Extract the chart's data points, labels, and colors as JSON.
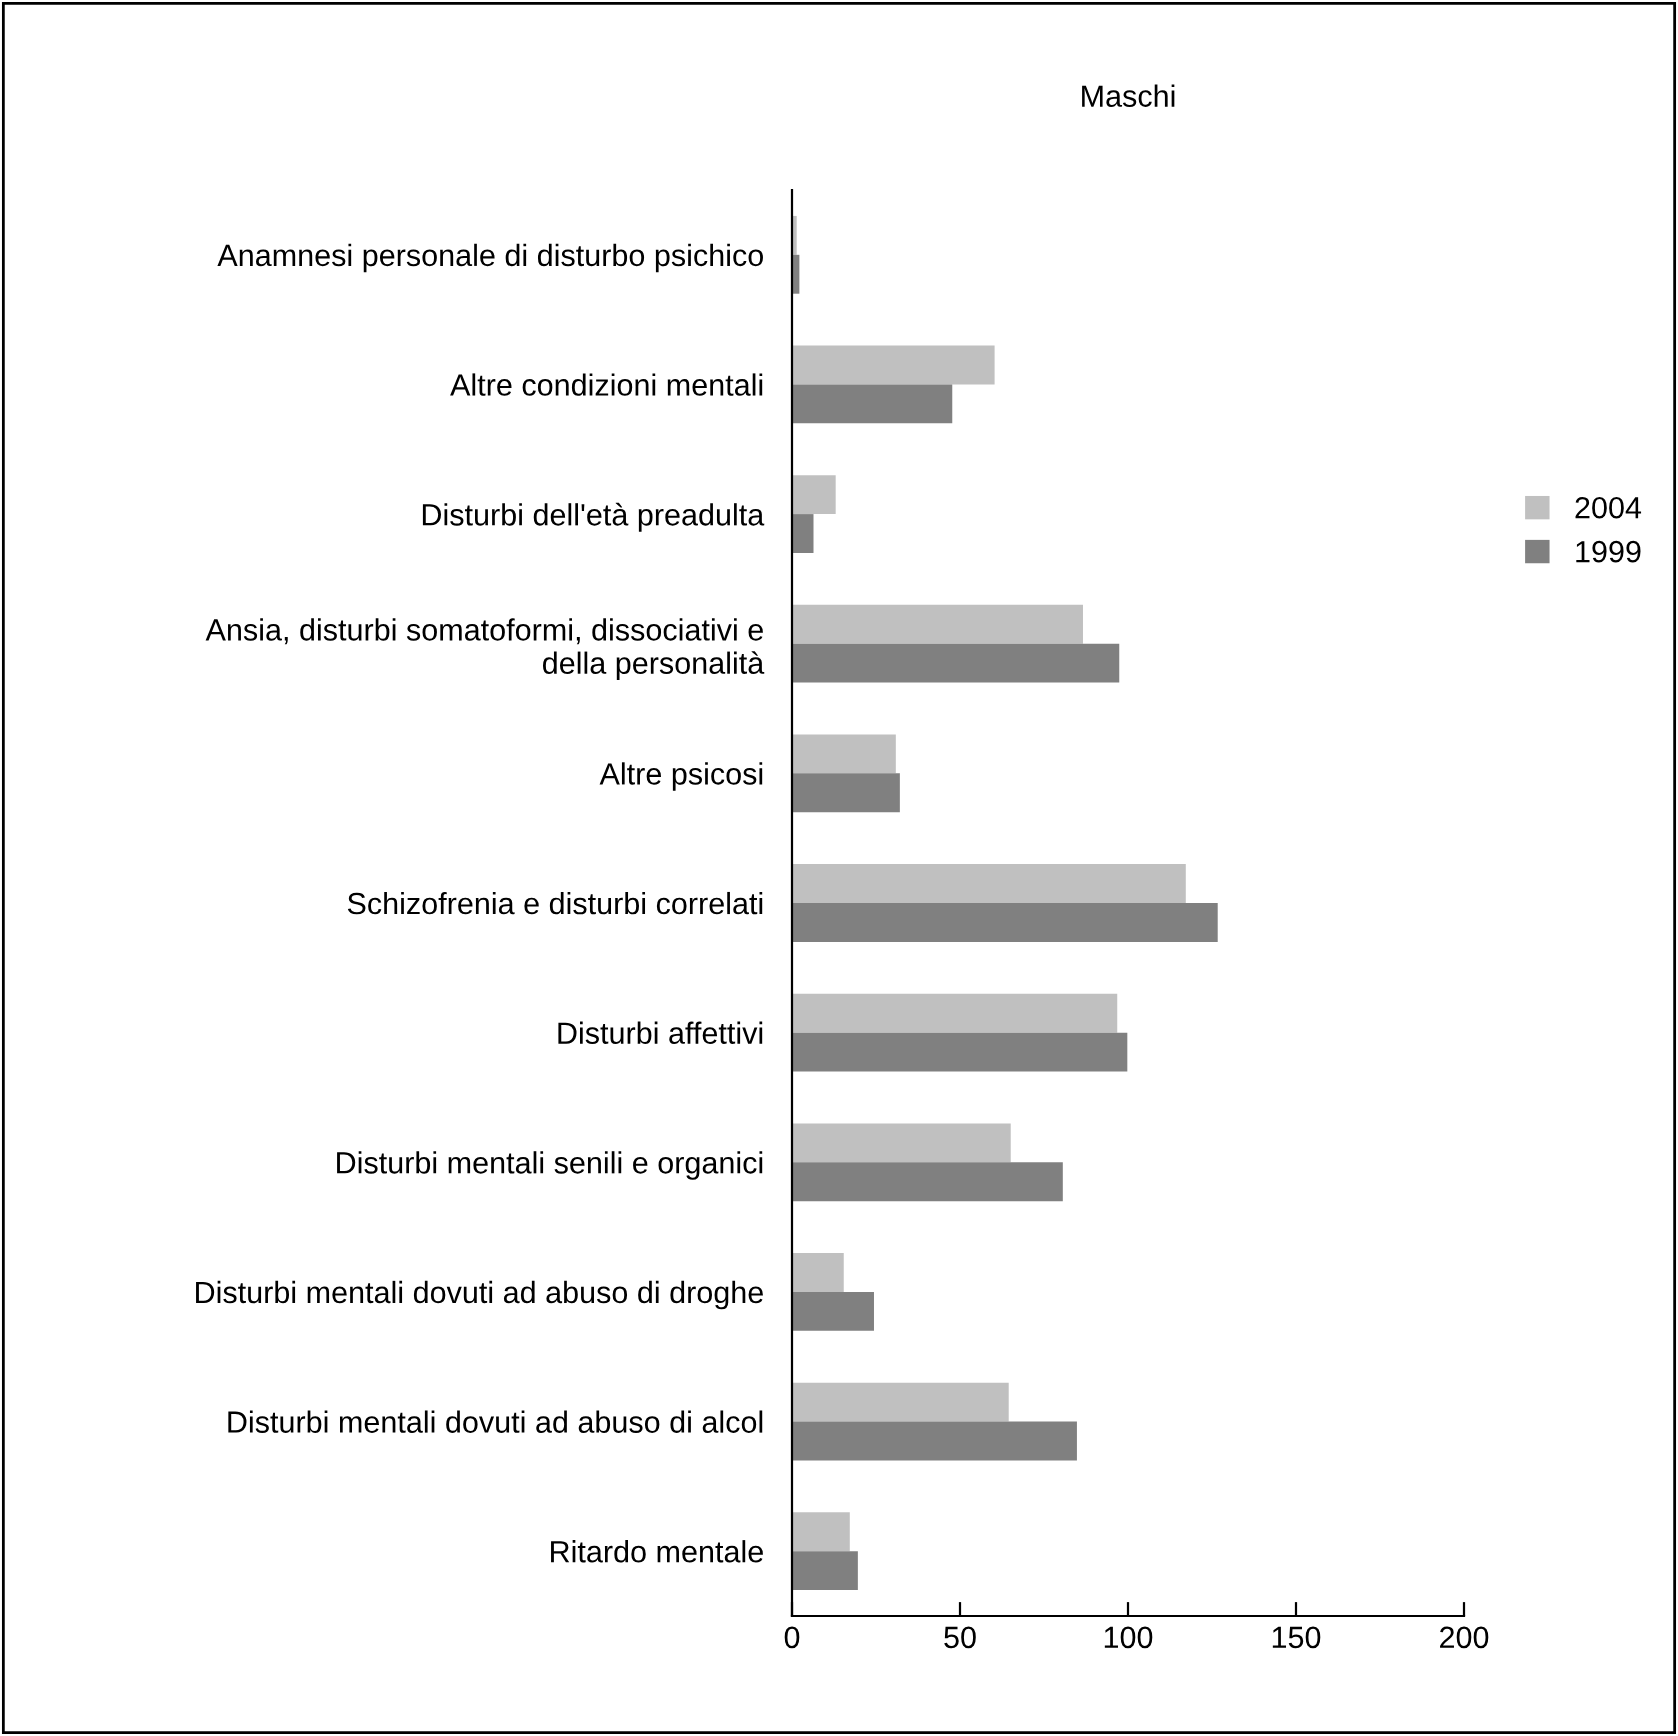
{
  "chart_data": {
    "type": "bar",
    "orientation": "horizontal",
    "title": "Maschi",
    "categories": [
      "Anamnesi personale di disturbo psichico",
      "Altre condizioni mentali",
      "Disturbi dell'età preadulta",
      "Ansia, disturbi somatoformi, dissociativi e\ndella personalità",
      "Altre psicosi",
      "Schizofrenia e disturbi correlati",
      "Disturbi affettivi",
      "Disturbi mentali senili e organici",
      "Disturbi mentali dovuti ad abuso di droghe",
      "Disturbi mentali dovuti ad abuso di alcol",
      "Ritardo mentale"
    ],
    "series": [
      {
        "name": "2004",
        "color": "#c0c0c0",
        "values": [
          1.4,
          60.3,
          13.0,
          86.6,
          30.9,
          117.2,
          96.8,
          65.1,
          15.4,
          64.5,
          17.2
        ]
      },
      {
        "name": "1999",
        "color": "#808080",
        "values": [
          2.2,
          47.7,
          6.4,
          97.4,
          32.1,
          126.7,
          99.8,
          80.6,
          24.4,
          84.8,
          19.6
        ]
      }
    ],
    "xlim": [
      0,
      200
    ],
    "xticks": [
      0,
      50,
      100,
      150,
      200
    ],
    "grid": false,
    "legend": "right"
  }
}
